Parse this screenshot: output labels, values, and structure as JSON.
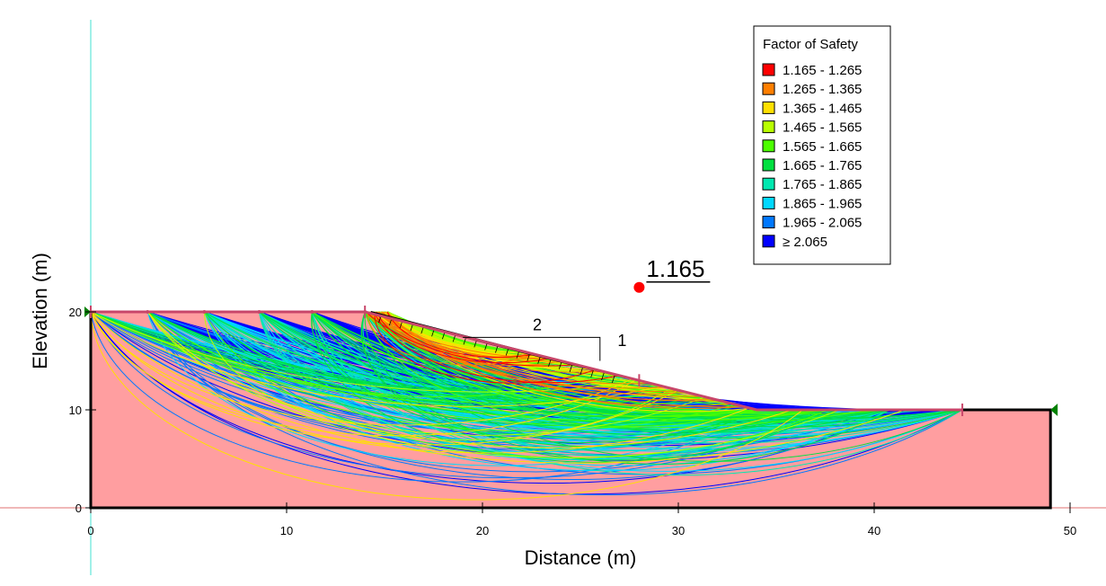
{
  "chart_data": {
    "type": "scatter",
    "xlabel": "Distance (m)",
    "ylabel": "Elevation (m)",
    "xlim": [
      0,
      50
    ],
    "ylim": [
      0,
      20
    ],
    "x_ticks": [
      "0",
      "10",
      "20",
      "30",
      "40",
      "50"
    ],
    "y_ticks": [
      "0",
      "10",
      "20"
    ],
    "slope_profile": [
      [
        0,
        20
      ],
      [
        14,
        20
      ],
      [
        28,
        13
      ],
      [
        34,
        10
      ],
      [
        44.5,
        10
      ],
      [
        49,
        10
      ],
      [
        49,
        0
      ],
      [
        0,
        0
      ]
    ],
    "slope_ratio": {
      "horizontal": "2",
      "vertical": "1"
    },
    "critical_center": {
      "x": 28,
      "y": 22.5,
      "fos_label": "1.165"
    },
    "legend": {
      "title": "Factor of Safety",
      "items": [
        {
          "label": "1.165 - 1.265",
          "color": "#ff0000"
        },
        {
          "label": "1.265 - 1.365",
          "color": "#ff7f00"
        },
        {
          "label": "1.365 - 1.465",
          "color": "#ffe000"
        },
        {
          "label": "1.465 - 1.565",
          "color": "#b8ff00"
        },
        {
          "label": "1.565 - 1.665",
          "color": "#4cff00"
        },
        {
          "label": "1.665 - 1.765",
          "color": "#00e040"
        },
        {
          "label": "1.765 - 1.865",
          "color": "#00e8b0"
        },
        {
          "label": "1.865 - 1.965",
          "color": "#00d8ff"
        },
        {
          "label": "1.965 - 2.065",
          "color": "#0078ff"
        },
        {
          "label": "≥ 2.065",
          "color": "#0000ff"
        }
      ]
    },
    "colors": {
      "soil": "#ff9ea0",
      "boundary": "#c8466a",
      "critical_surface": "#000000"
    }
  }
}
